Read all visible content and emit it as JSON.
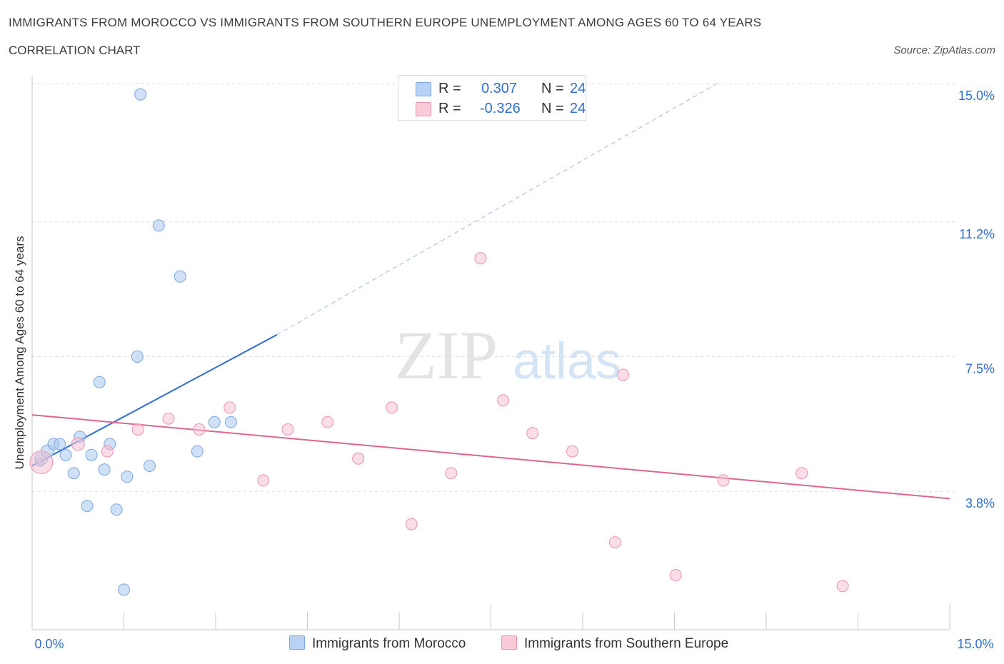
{
  "chart_data": {
    "type": "scatter",
    "title": "IMMIGRANTS FROM MOROCCO VS IMMIGRANTS FROM SOUTHERN EUROPE UNEMPLOYMENT AMONG AGES 60 TO 64 YEARS",
    "subtitle": "CORRELATION CHART",
    "source": "Source: ZipAtlas.com",
    "ylabel": "Unemployment Among Ages 60 to 64 years",
    "xlabel": "",
    "xlim": [
      0,
      15
    ],
    "ylim": [
      0,
      15
    ],
    "x_tick_labels": [
      "0.0%",
      "15.0%"
    ],
    "y_ticks": [
      3.8,
      7.5,
      11.2,
      15.0
    ],
    "y_tick_labels": [
      "3.8%",
      "7.5%",
      "11.2%",
      "15.0%"
    ],
    "grid": true,
    "watermark": "ZIPatlas",
    "legend": {
      "r_label": "R =",
      "n_label": "N =",
      "entries": [
        {
          "name": "Immigrants from Morocco",
          "r": "0.307",
          "n": "24"
        },
        {
          "name": "Immigrants from Southern Europe",
          "r": "-0.326",
          "n": "24"
        }
      ]
    },
    "series": [
      {
        "name": "Immigrants from Morocco",
        "color": "#a9c8f0",
        "stroke": "#7aa7de",
        "line_color": "#2f6fcf",
        "trend": {
          "x0": 0.0,
          "y0": 4.5,
          "x1": 4.0,
          "y1": 8.1,
          "dash_x1": 11.2,
          "dash_y1": 15.0
        },
        "points": [
          {
            "x": 0.15,
            "y": 4.7,
            "r": 9
          },
          {
            "x": 0.25,
            "y": 4.9,
            "r": 9
          },
          {
            "x": 0.35,
            "y": 5.1,
            "r": 8
          },
          {
            "x": 0.45,
            "y": 5.1,
            "r": 8
          },
          {
            "x": 0.55,
            "y": 4.8,
            "r": 8
          },
          {
            "x": 0.68,
            "y": 4.3,
            "r": 8
          },
          {
            "x": 0.78,
            "y": 5.3,
            "r": 8
          },
          {
            "x": 0.9,
            "y": 3.4,
            "r": 8
          },
          {
            "x": 0.97,
            "y": 4.8,
            "r": 8
          },
          {
            "x": 1.1,
            "y": 6.8,
            "r": 8
          },
          {
            "x": 1.18,
            "y": 4.4,
            "r": 8
          },
          {
            "x": 1.27,
            "y": 5.1,
            "r": 8
          },
          {
            "x": 1.38,
            "y": 3.3,
            "r": 8
          },
          {
            "x": 1.5,
            "y": 1.1,
            "r": 8
          },
          {
            "x": 1.55,
            "y": 4.2,
            "r": 8
          },
          {
            "x": 1.72,
            "y": 7.5,
            "r": 8
          },
          {
            "x": 1.77,
            "y": 14.7,
            "r": 8
          },
          {
            "x": 1.92,
            "y": 4.5,
            "r": 8
          },
          {
            "x": 2.07,
            "y": 11.1,
            "r": 8
          },
          {
            "x": 2.42,
            "y": 9.7,
            "r": 8
          },
          {
            "x": 2.7,
            "y": 4.9,
            "r": 8
          },
          {
            "x": 2.98,
            "y": 5.7,
            "r": 8
          },
          {
            "x": 3.25,
            "y": 5.7,
            "r": 8
          },
          {
            "x": 0.12,
            "y": 4.6,
            "r": 6
          }
        ]
      },
      {
        "name": "Immigrants from Southern Europe",
        "color": "#f6c1d1",
        "stroke": "#ec93ae",
        "line_color": "#e06690",
        "trend": {
          "x0": 0.0,
          "y0": 5.9,
          "x1": 15.0,
          "y1": 3.6
        },
        "points": [
          {
            "x": 0.15,
            "y": 4.6,
            "r": 16
          },
          {
            "x": 0.75,
            "y": 5.1,
            "r": 9
          },
          {
            "x": 1.23,
            "y": 4.9,
            "r": 8
          },
          {
            "x": 1.73,
            "y": 5.5,
            "r": 8
          },
          {
            "x": 2.23,
            "y": 5.8,
            "r": 8
          },
          {
            "x": 2.73,
            "y": 5.5,
            "r": 8
          },
          {
            "x": 3.23,
            "y": 6.1,
            "r": 8
          },
          {
            "x": 3.78,
            "y": 4.1,
            "r": 8
          },
          {
            "x": 4.18,
            "y": 5.5,
            "r": 8
          },
          {
            "x": 4.83,
            "y": 5.7,
            "r": 8
          },
          {
            "x": 5.33,
            "y": 4.7,
            "r": 8
          },
          {
            "x": 5.88,
            "y": 6.1,
            "r": 8
          },
          {
            "x": 6.2,
            "y": 2.9,
            "r": 8
          },
          {
            "x": 6.85,
            "y": 4.3,
            "r": 8
          },
          {
            "x": 7.33,
            "y": 10.2,
            "r": 8
          },
          {
            "x": 7.7,
            "y": 6.3,
            "r": 8
          },
          {
            "x": 8.18,
            "y": 5.4,
            "r": 8
          },
          {
            "x": 8.83,
            "y": 4.9,
            "r": 8
          },
          {
            "x": 9.53,
            "y": 2.4,
            "r": 8
          },
          {
            "x": 9.66,
            "y": 7.0,
            "r": 8
          },
          {
            "x": 10.52,
            "y": 1.5,
            "r": 8
          },
          {
            "x": 11.3,
            "y": 4.1,
            "r": 8
          },
          {
            "x": 12.58,
            "y": 4.3,
            "r": 8
          },
          {
            "x": 13.25,
            "y": 1.2,
            "r": 8
          }
        ]
      }
    ]
  }
}
